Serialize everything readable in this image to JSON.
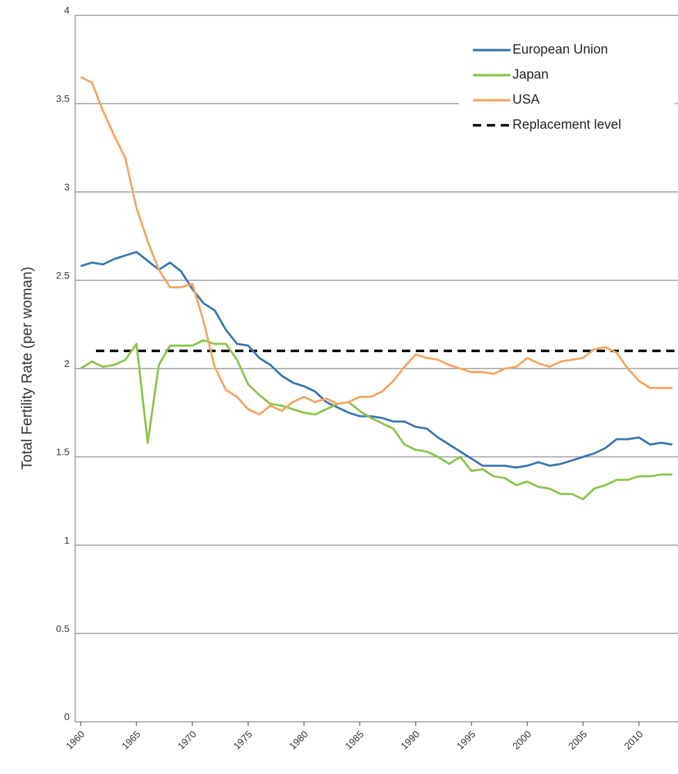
{
  "chart_data": {
    "type": "line",
    "y_label": "Total Fertility Rate (per woman)",
    "x": [
      1960,
      1961,
      1962,
      1963,
      1964,
      1965,
      1966,
      1967,
      1968,
      1969,
      1970,
      1971,
      1972,
      1973,
      1974,
      1975,
      1976,
      1977,
      1978,
      1979,
      1980,
      1981,
      1982,
      1983,
      1984,
      1985,
      1986,
      1987,
      1988,
      1989,
      1990,
      1991,
      1992,
      1993,
      1994,
      1995,
      1996,
      1997,
      1998,
      1999,
      2000,
      2001,
      2002,
      2003,
      2004,
      2005,
      2006,
      2007,
      2008,
      2009,
      2010,
      2011,
      2012,
      2013
    ],
    "series": [
      {
        "name": "European Union",
        "color": "#3a76b0",
        "values": [
          2.58,
          2.6,
          2.59,
          2.62,
          2.64,
          2.66,
          2.61,
          2.56,
          2.6,
          2.55,
          2.45,
          2.37,
          2.33,
          2.22,
          2.14,
          2.13,
          2.06,
          2.02,
          1.96,
          1.92,
          1.9,
          1.87,
          1.81,
          1.78,
          1.75,
          1.73,
          1.73,
          1.72,
          1.7,
          1.7,
          1.67,
          1.66,
          1.61,
          1.57,
          1.53,
          1.49,
          1.45,
          1.45,
          1.45,
          1.44,
          1.45,
          1.47,
          1.45,
          1.46,
          1.48,
          1.5,
          1.52,
          1.55,
          1.6,
          1.6,
          1.61,
          1.57,
          1.58,
          1.57
        ]
      },
      {
        "name": "Japan",
        "color": "#8bc34a",
        "values": [
          2.0,
          2.04,
          2.01,
          2.02,
          2.05,
          2.14,
          1.58,
          2.02,
          2.13,
          2.13,
          2.13,
          2.16,
          2.14,
          2.14,
          2.05,
          1.91,
          1.85,
          1.8,
          1.79,
          1.77,
          1.75,
          1.74,
          1.77,
          1.8,
          1.81,
          1.76,
          1.72,
          1.69,
          1.66,
          1.57,
          1.54,
          1.53,
          1.5,
          1.46,
          1.5,
          1.42,
          1.43,
          1.39,
          1.38,
          1.34,
          1.36,
          1.33,
          1.32,
          1.29,
          1.29,
          1.26,
          1.32,
          1.34,
          1.37,
          1.37,
          1.39,
          1.39,
          1.4,
          1.4
        ]
      },
      {
        "name": "USA",
        "color": "#f4a460",
        "values": [
          3.65,
          3.62,
          3.46,
          3.32,
          3.19,
          2.91,
          2.72,
          2.56,
          2.46,
          2.46,
          2.48,
          2.27,
          2.01,
          1.88,
          1.84,
          1.77,
          1.74,
          1.79,
          1.76,
          1.81,
          1.84,
          1.81,
          1.83,
          1.8,
          1.81,
          1.84,
          1.84,
          1.87,
          1.93,
          2.01,
          2.08,
          2.06,
          2.05,
          2.02,
          2.0,
          1.98,
          1.98,
          1.97,
          2.0,
          2.01,
          2.06,
          2.03,
          2.01,
          2.04,
          2.05,
          2.06,
          2.11,
          2.12,
          2.09,
          2.0,
          1.93,
          1.89,
          1.89,
          1.89
        ]
      }
    ],
    "reference_lines": [
      {
        "name": "Replacement level",
        "value": 2.1,
        "color": "#000000",
        "dashed": true
      }
    ],
    "xlim": [
      1959.5,
      2013.5
    ],
    "xticks": [
      1960,
      1965,
      1970,
      1975,
      1980,
      1985,
      1990,
      1995,
      2000,
      2005,
      2010
    ],
    "ylim": [
      0,
      4
    ],
    "yticks": [
      0,
      0.5,
      1,
      1.5,
      2,
      2.5,
      3,
      3.5,
      4
    ],
    "grid": true,
    "legend": "top-right"
  }
}
